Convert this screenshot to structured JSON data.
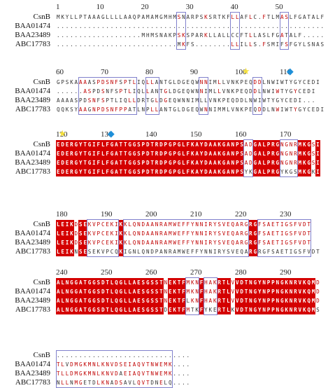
{
  "colors": {
    "identical_bg": "#d40000",
    "identical_fg": "#ffffff",
    "similar_fg": "#c00000",
    "box_border": "#8080cc",
    "star": "#f5e03a",
    "diamond": "#1e8fd8"
  },
  "sequences": [
    "CsnB",
    "BAA01474",
    "BAA23489",
    "ABC17783"
  ],
  "blocks": [
    {
      "start": 1,
      "tick_labels": [
        "1",
        "10",
        "20",
        "30",
        "40",
        "50"
      ],
      "rows": [
        "MKYLLPTAAAGLLLLAAQPAMAMGMHMSNARPSKSRTKFLLAFLC.FTLMASLFGATALF",
        "............................................................",
        "...................MHMSNAKPSKSPARKLLALLCCFTLLASLFGATALF.....",
        "...........................MKFS........LLILLS.FSMIFSFGYLSNAS"
      ],
      "markers": []
    },
    {
      "start": 60,
      "tick_labels": [
        "60",
        "70",
        "80",
        "90",
        "100",
        "110"
      ],
      "rows": [
        "GPSKAAAASPDSNFSPTLIQLLANTGLDGEQWNNIMLLVNKPEQDDLNWIWTYGYCEDI",
        "......ASPDSNFSPTLIQLLANTGLDGEQWNNIMLLVNKPEQDDLNWIWTYGYCEDI",
        "AAAASPDSNFSPTLIQLLDRTGLDGEQWNNIMLLVNKPEQDDLNWIWTYGYCEDI...",
        "QQKSYAAGNPDSNFPPATLNPLLANTGLDGEQWNNIMMLVNKPEQDDLNWIWTYGYCEDI"
      ],
      "markers": [
        {
          "type": "star",
          "symbol": "★",
          "position": 102
        },
        {
          "type": "diamond",
          "symbol": "◆",
          "position": 112
        }
      ]
    },
    {
      "start": 120,
      "tick_labels": [
        "120",
        "130",
        "140",
        "150",
        "160",
        "170"
      ],
      "rows": [
        "EDERGYTGIFLFGATTGGSPDTRDPGPGLFKAYDAAKGANPSADGALPRGNGNRMKGSI",
        "EDERGYTGIFLFGATTGGSPDTRDPGPGLFKAYDAAKGANPSADGALPRGNGNRMKGSI",
        "EDERGYTGIFLFGATTGGSPDTRDPGPGLFKAYDAAKGANPSADGALPRGNGNRMKGSI",
        "EDERGYTGIFLFGATTGGSPDTRDPGPGLFKAYDAAKGANPSYKGALPRGYKGSMKGKI"
      ],
      "markers": [
        {
          "type": "star",
          "symbol": "★",
          "position": 121
        },
        {
          "type": "diamond",
          "symbol": "◆",
          "position": 132
        }
      ]
    },
    {
      "start": 180,
      "tick_labels": [
        "180",
        "190",
        "200",
        "210",
        "220",
        "230"
      ],
      "rows": [
        "LEIKDSEKVPCEKIKKLQNDAANRAMWEFFYNNIRYSVEQARGRGFSAETIGSFVDT",
        "LEIKDSEKVPCEKIKKLQNDAANRAMWEFFYNNIRYSVEQARGRGFSAETIGSFVDT",
        "LEIKDSEKVPCEKIKKLQNDAANRAMWEFFYNNIRYSVEQARGRGFSAETIGSFVDT",
        "LEIKNSESEKVPCQKIGNLQNDPANRAMWEFFYNNIRYSVEQARGRGFSAETIGSFVDT"
      ],
      "markers": []
    },
    {
      "start": 240,
      "tick_labels": [
        "240",
        "250",
        "260",
        "270",
        "280",
        "290"
      ],
      "rows": [
        "ALNGGATGGSDTLQGLLAESGSSTNEKTFMKNFHAKRTLVVDTNGYNPPNGKNRVKQMD",
        "ALNGGATGGSDTLQGLLAESGSSTNEKTFMKNFHAKRTLVVDTNGYNPPNGKNRVKQMD",
        "ALNGGATGGSDTLQGLLAESGSSTNEKTFLKNFHAKRTLVVDTNGYNPPNGKNRVKQMD",
        "ALNGGATGGSDTLQGLLAESGSSTDEKTFMTKFYKERTLKVDTNGYNPPNGKNRVKQMS"
      ],
      "markers": []
    },
    {
      "start": 300,
      "tick_labels": [],
      "rows": [
        "..............................",
        "TLVDMGKMNLKNVDSEIAQVTNWEMK....",
        "TLLDMGKMNLKNVDAEIAQVTNWEMK....",
        "NLLNMGETDLKNADSAVLQVTDNELQ...."
      ],
      "markers": []
    }
  ]
}
